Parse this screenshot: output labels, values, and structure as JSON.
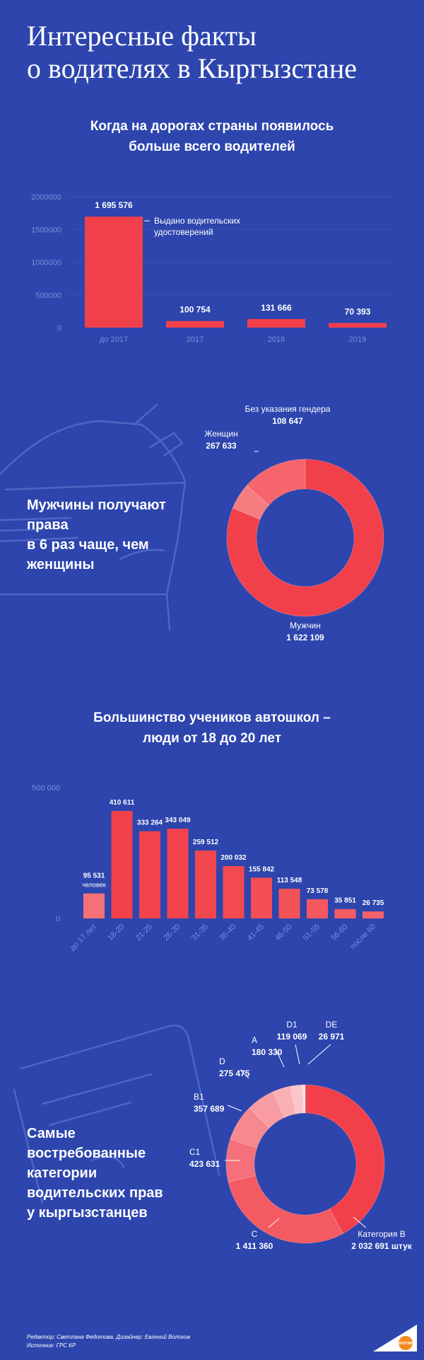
{
  "header": {
    "title_lines": [
      "Интересные факты",
      "о водителях в Кыргызстане"
    ]
  },
  "chart_data": [
    {
      "type": "bar",
      "title_lines": [
        "Когда на дорогах страны появилось",
        "больше всего водителей"
      ],
      "categories": [
        "до 2017",
        "2017",
        "2018",
        "2019"
      ],
      "values": [
        1695576,
        100754,
        131666,
        70393
      ],
      "value_labels": [
        "1 695 576",
        "100 754",
        "131 666",
        "70 393"
      ],
      "yticks": [
        0,
        500000,
        1000000,
        1500000,
        2000000
      ],
      "ylim": [
        0,
        2000000
      ],
      "annotation_lines": [
        "Выдано водительских",
        "удостоверений"
      ],
      "grid": true,
      "color": "#f2404b"
    },
    {
      "type": "pie",
      "title_lines": [
        "Мужчины получают права",
        "в 6 раз чаще, чем женщины"
      ],
      "slices": [
        {
          "label": "Мужчин",
          "value": 1622109,
          "value_label": "1 622 109",
          "color": "#f2404b"
        },
        {
          "label": "Без указания гендера",
          "value": 108647,
          "value_label": "108 647",
          "color": "#f67d7f"
        },
        {
          "label": "Женщин",
          "value": 267633,
          "value_label": "267 633",
          "color": "#f5656b"
        }
      ]
    },
    {
      "type": "bar",
      "title_lines": [
        "Большинство учеников автошкол –",
        "люди от 18 до 20 лет"
      ],
      "categories": [
        "до 17 лет",
        "18-20",
        "21-25",
        "26-30",
        "31-35",
        "36-40",
        "41-45",
        "46-50",
        "51-55",
        "56-60",
        "после 60"
      ],
      "values": [
        95531,
        410611,
        333264,
        343049,
        259512,
        200032,
        155842,
        113548,
        73578,
        35851,
        26735
      ],
      "value_labels": [
        "95 531",
        "410 611",
        "333 264",
        "343 049",
        "259 512",
        "200 032",
        "155 842",
        "113 548",
        "73 578",
        "35 851",
        "26 735"
      ],
      "first_label_suffix": "человек",
      "yticks": [
        0,
        500000
      ],
      "tick_labels": [
        "0",
        "500 000"
      ],
      "ylim": [
        0,
        500000
      ],
      "colors": [
        "#f57178",
        "#f2404b",
        "#f2434d",
        "#f2434d",
        "#f2474f",
        "#f34a52",
        "#f34d55",
        "#f45259",
        "#f4575e",
        "#f55d63",
        "#f56269"
      ]
    },
    {
      "type": "pie",
      "title_lines": [
        "Самые востребованные",
        "категории",
        "водительских прав",
        "у кыргызстанцев"
      ],
      "slices": [
        {
          "label": "Категория B",
          "value": 2032691,
          "value_label": "2 032 691 штук",
          "color": "#f2404b"
        },
        {
          "label": "C",
          "value": 1411360,
          "value_label": "1 411 360",
          "color": "#f45a62"
        },
        {
          "label": "C1",
          "value": 423631,
          "value_label": "423 631",
          "color": "#f5707a"
        },
        {
          "label": "B1",
          "value": 357689,
          "value_label": "357 689",
          "color": "#f78890"
        },
        {
          "label": "D",
          "value": 275475,
          "value_label": "275 475",
          "color": "#f89ba2"
        },
        {
          "label": "A",
          "value": 180330,
          "value_label": "180 330",
          "color": "#fab0b5"
        },
        {
          "label": "D1",
          "value": 119069,
          "value_label": "119 069",
          "color": "#fbc6c9"
        },
        {
          "label": "DE",
          "value": 26971,
          "value_label": "26 971",
          "color": "#fde0e2"
        }
      ]
    }
  ],
  "footer": {
    "credits": "Редактор: Светлана Федотова. Дизайнер: Евгений Волохов",
    "source": "Источник: ГРС КР"
  },
  "brand": {
    "logo_text": "SPUTNIK",
    "background": "#2d45ad"
  }
}
